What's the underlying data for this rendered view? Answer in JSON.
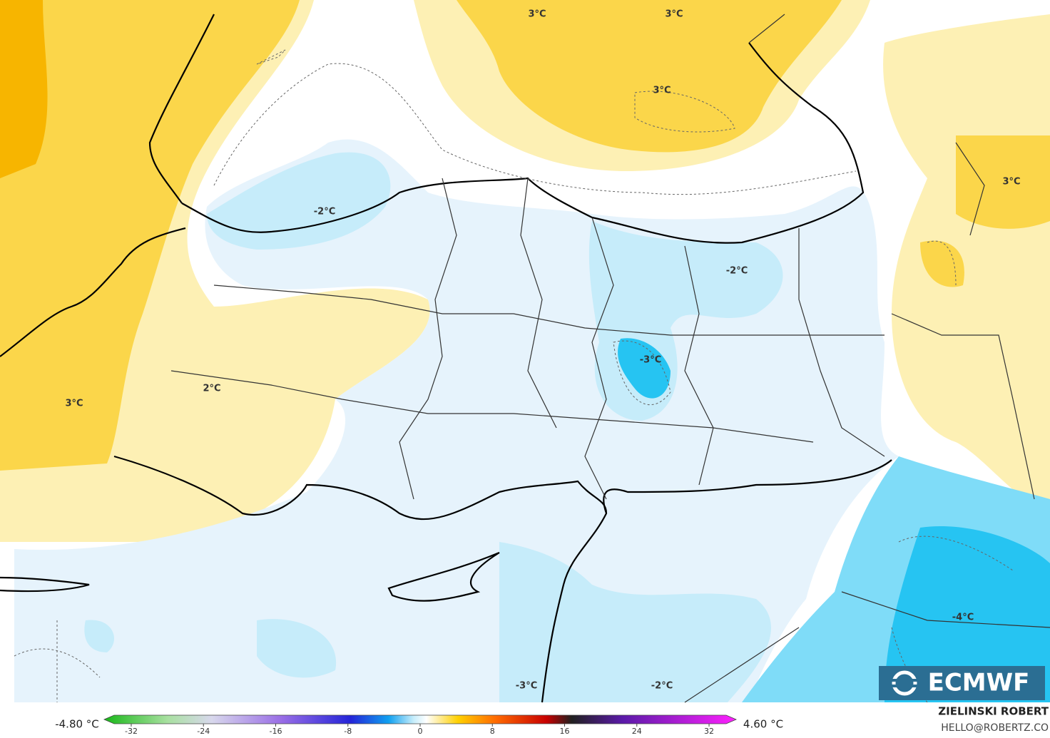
{
  "map": {
    "labels": [
      "3°C",
      "3°C",
      "3°C",
      "-2°C",
      "-2°C",
      "3°C",
      "-3°C",
      "2°C",
      "3°C",
      "-4°C",
      "-3°C",
      "-2°C"
    ]
  },
  "colorbar": {
    "min_label": "-4.80 °C",
    "max_label": "4.60 °C",
    "lim": [
      -35,
      35
    ],
    "ticks": [
      -32,
      -24,
      -16,
      -8,
      0,
      8,
      16,
      24,
      32
    ]
  },
  "logo": "ECMWF",
  "author": {
    "name": "ZIELINSKI ROBERT",
    "contact": "HELLO@ROBERTZ.CO"
  }
}
